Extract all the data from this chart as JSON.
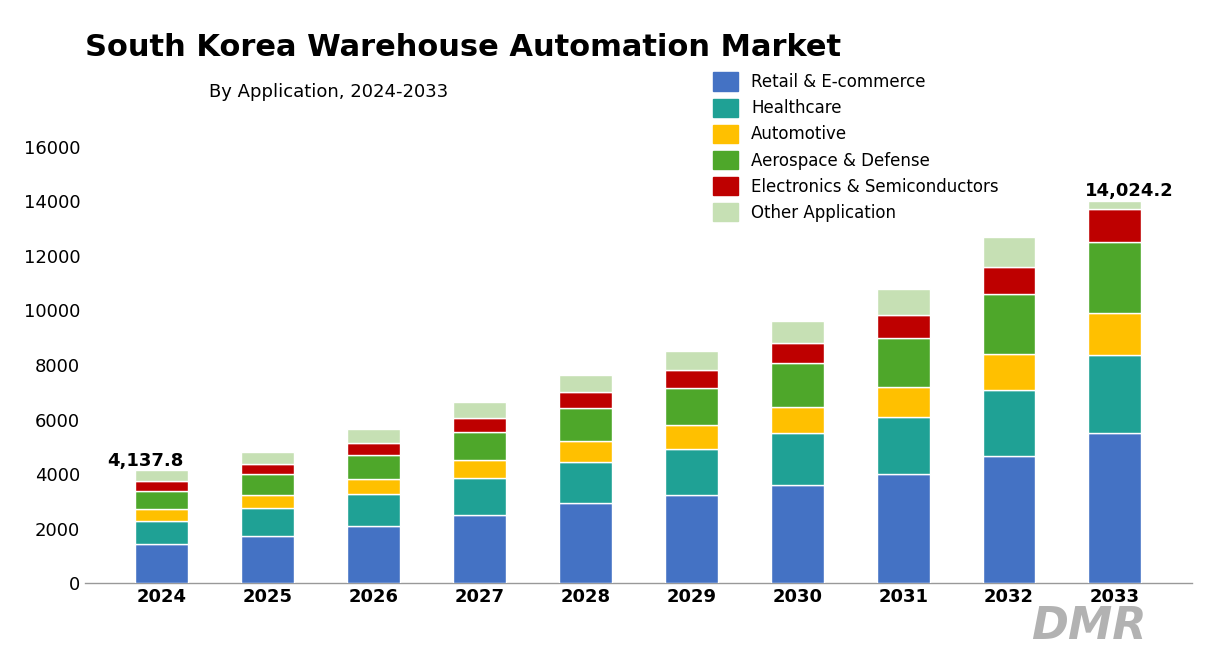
{
  "title": "South Korea Warehouse Automation Market",
  "subtitle": "By Application, 2024-2033",
  "years": [
    2024,
    2025,
    2026,
    2027,
    2028,
    2029,
    2030,
    2031,
    2032,
    2033
  ],
  "segments": {
    "Retail & E-commerce": [
      1450,
      1750,
      2100,
      2500,
      2950,
      3250,
      3600,
      4000,
      4650,
      5500
    ],
    "Healthcare": [
      850,
      1000,
      1180,
      1350,
      1500,
      1680,
      1900,
      2100,
      2450,
      2850
    ],
    "Automotive": [
      420,
      490,
      560,
      660,
      760,
      860,
      980,
      1100,
      1300,
      1550
    ],
    "Aerospace & Defense": [
      680,
      760,
      880,
      1050,
      1220,
      1360,
      1580,
      1800,
      2200,
      2600
    ],
    "Electronics & Semiconductors": [
      340,
      390,
      440,
      510,
      580,
      660,
      750,
      850,
      1000,
      1200
    ],
    "Other Application": [
      397.8,
      430,
      490,
      570,
      640,
      720,
      820,
      930,
      1080,
      324.2
    ]
  },
  "totals_label": {
    "2024": "4,137.8",
    "2033": "14,024.2"
  },
  "colors": {
    "Retail & E-commerce": "#4472C4",
    "Healthcare": "#1FA195",
    "Automotive": "#FFC000",
    "Aerospace & Defense": "#4EA72A",
    "Electronics & Semiconductors": "#BE0000",
    "Other Application": "#C6E0B4"
  },
  "ylim": [
    0,
    17000
  ],
  "yticks": [
    0,
    2000,
    4000,
    6000,
    8000,
    10000,
    12000,
    14000,
    16000
  ],
  "bg_color": "#FFFFFF",
  "title_fontsize": 22,
  "subtitle_fontsize": 13,
  "tick_fontsize": 13,
  "legend_fontsize": 12,
  "annotation_fontsize": 13
}
